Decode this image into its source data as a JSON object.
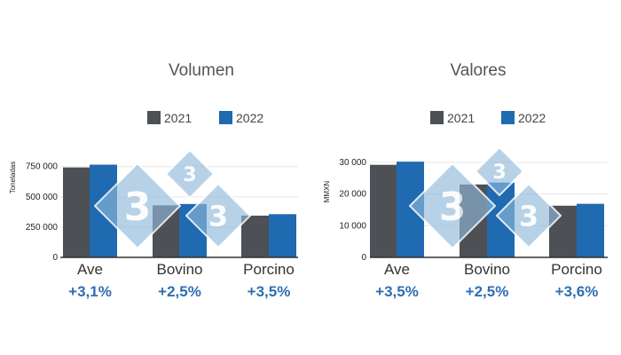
{
  "colors": {
    "series_2021": "#4d5054",
    "series_2022": "#1f6ab0",
    "percent_text": "#2e6fb3",
    "watermark": "#8fb8da"
  },
  "chart_data": [
    {
      "type": "bar",
      "title": "Volumen",
      "ylabel": "Toneladas",
      "categories": [
        "Ave",
        "Bovino",
        "Porcino"
      ],
      "series": [
        {
          "name": "2021",
          "values": [
            743000,
            430000,
            345000
          ]
        },
        {
          "name": "2022",
          "values": [
            766000,
            441000,
            357000
          ]
        }
      ],
      "ylim": [
        0,
        880000
      ],
      "yticks": [
        0,
        250000,
        500000,
        750000
      ],
      "ytick_labels": [
        "0",
        "250 000",
        "500 000",
        "750 000"
      ],
      "percent_changes": [
        "+3,1%",
        "+2,5%",
        "+3,5%"
      ],
      "legend_position": "top",
      "grid": true
    },
    {
      "type": "bar",
      "title": "Valores",
      "ylabel": "MMXN",
      "categories": [
        "Ave",
        "Bovino",
        "Porcino"
      ],
      "series": [
        {
          "name": "2021",
          "values": [
            29200,
            23000,
            16300
          ]
        },
        {
          "name": "2022",
          "values": [
            30200,
            23600,
            16900
          ]
        }
      ],
      "ylim": [
        0,
        33600
      ],
      "yticks": [
        0,
        10000,
        20000,
        30000
      ],
      "ytick_labels": [
        "0",
        "10 000",
        "20 000",
        "30 000"
      ],
      "percent_changes": [
        "+3,5%",
        "+2,5%",
        "+3,6%"
      ],
      "legend_position": "top",
      "grid": true
    }
  ]
}
